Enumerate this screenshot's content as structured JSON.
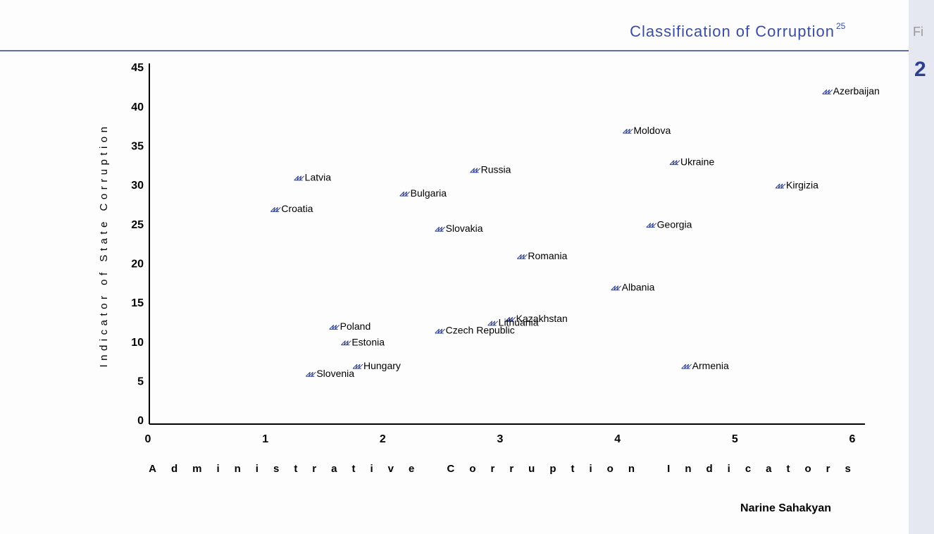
{
  "header": {
    "title": "Classification of Corruption",
    "footnote_ref": "25",
    "side_text": "Fi",
    "page_fragment": "2"
  },
  "footer": {
    "author": "Narine Sahakyan"
  },
  "chart_data": {
    "type": "scatter",
    "x_label": "Administrative Corruption Indicators",
    "y_label": "Indicator of State Corruption",
    "categories": [
      "Azerbaijan",
      "Moldova",
      "Ukraine",
      "Kirgizia",
      "Russia",
      "Latvia",
      "Bulgaria",
      "Croatia",
      "Slovakia",
      "Georgia",
      "Romania",
      "Albania",
      "Kazakhstan",
      "Lithuania",
      "Poland",
      "Czech Republic",
      "Estonia",
      "Hungary",
      "Armenia",
      "Slovenia"
    ],
    "x": [
      5.8,
      4.1,
      4.5,
      5.4,
      2.8,
      1.3,
      2.2,
      1.1,
      2.5,
      4.3,
      3.2,
      4.0,
      3.1,
      2.95,
      1.6,
      2.5,
      1.7,
      1.8,
      4.6,
      1.4
    ],
    "values": [
      42,
      37,
      33,
      30,
      32,
      31,
      29,
      27,
      24.5,
      25,
      21,
      17,
      13,
      12.5,
      12,
      11.5,
      10,
      7,
      7,
      6
    ],
    "color": "#2d3f8f",
    "xlim": [
      0,
      6
    ],
    "xticks": [
      0,
      1,
      2,
      3,
      4,
      5,
      6
    ],
    "ylim": [
      0,
      45
    ],
    "yticks": [
      0,
      5,
      10,
      15,
      20,
      25,
      30,
      35,
      40,
      45
    ],
    "grid": false
  }
}
